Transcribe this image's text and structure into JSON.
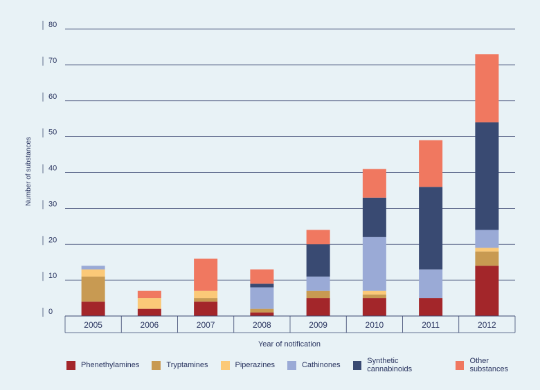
{
  "chart_data": {
    "type": "bar",
    "stacked": true,
    "title": "",
    "xlabel": "Year of notification",
    "ylabel": "Number of substances",
    "ylim": [
      0,
      80
    ],
    "yticks": [
      "0",
      "10",
      "20",
      "30",
      "40",
      "50",
      "60",
      "70",
      "80"
    ],
    "grid": true,
    "legend_position": "bottom",
    "categories": [
      "2005",
      "2006",
      "2007",
      "2008",
      "2009",
      "2010",
      "2011",
      "2012"
    ],
    "series": [
      {
        "name": "Phenethylamines",
        "color": "#a3262a",
        "values": [
          4,
          2,
          4,
          1,
          5,
          5,
          5,
          14
        ]
      },
      {
        "name": "Tryptamines",
        "color": "#c89a52",
        "values": [
          7,
          0,
          1,
          1,
          2,
          1,
          0,
          4
        ]
      },
      {
        "name": "Piperazines",
        "color": "#fbc978",
        "values": [
          2,
          3,
          2,
          0,
          0,
          1,
          0,
          1
        ]
      },
      {
        "name": "Cathinones",
        "color": "#9aaad6",
        "values": [
          1,
          0,
          0,
          6,
          4,
          15,
          8,
          5
        ]
      },
      {
        "name": "Synthetic cannabinoids",
        "color": "#394a72",
        "values": [
          0,
          0,
          0,
          1,
          9,
          11,
          23,
          30
        ]
      },
      {
        "name": "Other substances",
        "color": "#f07860",
        "values": [
          0,
          2,
          9,
          4,
          4,
          8,
          13,
          19
        ]
      }
    ]
  }
}
